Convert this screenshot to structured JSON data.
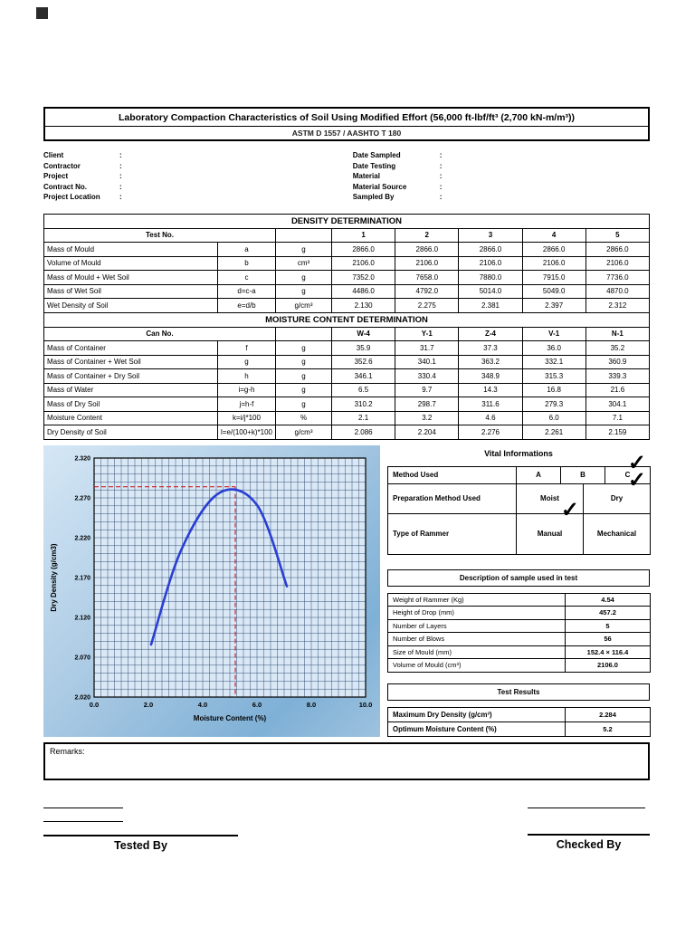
{
  "page": {
    "title": "Laboratory Compaction Characteristics of Soil Using Modified Effort (56,000 ft-lbf/ft³ (2,700 kN-m/m³))",
    "subtitle": "ASTM D 1557 / AASHTO T 180"
  },
  "info": {
    "colon": ":",
    "left": [
      "Client",
      "Contractor",
      "Project",
      "Contract No.",
      "Project Location"
    ],
    "right": [
      "Date Sampled",
      "Date Testing",
      "Material",
      "Material Source",
      "Sampled By"
    ]
  },
  "density": {
    "section_title": "DENSITY DETERMINATION",
    "header": {
      "label": "Test No.",
      "cols": [
        "1",
        "2",
        "3",
        "4",
        "5"
      ]
    },
    "rows": [
      {
        "label": "Mass of Mould",
        "formula": "a",
        "unit": "g",
        "values": [
          "2866.0",
          "2866.0",
          "2866.0",
          "2866.0",
          "2866.0"
        ]
      },
      {
        "label": "Volume of Mould",
        "formula": "b",
        "unit": "cm³",
        "values": [
          "2106.0",
          "2106.0",
          "2106.0",
          "2106.0",
          "2106.0"
        ]
      },
      {
        "label": "Mass of Mould + Wet Soil",
        "formula": "c",
        "unit": "g",
        "values": [
          "7352.0",
          "7658.0",
          "7880.0",
          "7915.0",
          "7736.0"
        ]
      },
      {
        "label": "Mass of Wet Soil",
        "formula": "d=c-a",
        "unit": "g",
        "values": [
          "4486.0",
          "4792.0",
          "5014.0",
          "5049.0",
          "4870.0"
        ]
      },
      {
        "label": "Wet Density of Soil",
        "formula": "e=d/b",
        "unit": "g/cm³",
        "values": [
          "2.130",
          "2.275",
          "2.381",
          "2.397",
          "2.312"
        ]
      }
    ]
  },
  "moisture": {
    "section_title": "MOISTURE CONTENT DETERMINATION",
    "header": {
      "label": "Can No.",
      "cols": [
        "W-4",
        "Y-1",
        "Z-4",
        "V-1",
        "N-1"
      ]
    },
    "rows": [
      {
        "label": "Mass of Container",
        "formula": "f",
        "unit": "g",
        "values": [
          "35.9",
          "31.7",
          "37.3",
          "36.0",
          "35.2"
        ]
      },
      {
        "label": "Mass of Container + Wet Soil",
        "formula": "g",
        "unit": "g",
        "values": [
          "352.6",
          "340.1",
          "363.2",
          "332.1",
          "360.9"
        ]
      },
      {
        "label": "Mass of Container + Dry Soil",
        "formula": "h",
        "unit": "g",
        "values": [
          "346.1",
          "330.4",
          "348.9",
          "315.3",
          "339.3"
        ]
      },
      {
        "label": "Mass of Water",
        "formula": "i=g-h",
        "unit": "g",
        "values": [
          "6.5",
          "9.7",
          "14.3",
          "16.8",
          "21.6"
        ]
      },
      {
        "label": "Mass of Dry Soil",
        "formula": "j=h-f",
        "unit": "g",
        "values": [
          "310.2",
          "298.7",
          "311.6",
          "279.3",
          "304.1"
        ]
      },
      {
        "label": "Moisture Content",
        "formula": "k=i/j*100",
        "unit": "%",
        "values": [
          "2.1",
          "3.2",
          "4.6",
          "6.0",
          "7.1"
        ]
      },
      {
        "label": "Dry Density of Soil",
        "formula": "l=e/(100+k)*100",
        "unit": "g/cm³",
        "values": [
          "2.086",
          "2.204",
          "2.276",
          "2.261",
          "2.159"
        ]
      }
    ]
  },
  "chart_data": {
    "type": "line",
    "title": "",
    "xlabel": "Moisture Content (%)",
    "ylabel": "Dry Density (g/cm3)",
    "x": [
      2.1,
      3.2,
      4.6,
      6.0,
      7.1
    ],
    "y": [
      2.086,
      2.204,
      2.276,
      2.261,
      2.159
    ],
    "xlim": [
      0,
      10
    ],
    "ylim": [
      2.02,
      2.32
    ],
    "xticks": [
      "0.0",
      "2.0",
      "4.0",
      "6.0",
      "8.0",
      "10.0"
    ],
    "yticks": [
      "2.020",
      "2.070",
      "2.120",
      "2.170",
      "2.220",
      "2.270",
      "2.320"
    ],
    "grid": true,
    "guides": {
      "optimum_moisture": 5.2,
      "max_dry_density": 2.284
    },
    "curve_color": "#2a3fd4",
    "guide_color": "#cc2222"
  },
  "vital": {
    "title": "Vital Informations",
    "method": {
      "label": "Method Used",
      "options": [
        "A",
        "B",
        "C"
      ],
      "checked": 2
    },
    "preparation": {
      "label": "Preparation Method Used",
      "options": [
        "Moist",
        "Dry"
      ],
      "checked": 1
    },
    "rammer": {
      "label": "Type of Rammer",
      "options": [
        "Manual",
        "Mechanical"
      ],
      "checked": 0
    }
  },
  "icons": {
    "check": "✓"
  },
  "description": {
    "title": "Description of sample used in test",
    "rows": [
      {
        "label": "Weight of Rammer (Kg)",
        "value": "4.54"
      },
      {
        "label": "Height of Drop (mm)",
        "value": "457.2"
      },
      {
        "label": "Number of Layers",
        "value": "5"
      },
      {
        "label": "Number of Blows",
        "value": "56"
      },
      {
        "label": "Size of Mould (mm)",
        "value": "152.4 × 116.4"
      },
      {
        "label": "Volume of Mould (cm³)",
        "value": "2106.0"
      }
    ]
  },
  "results": {
    "title": "Test Results",
    "rows": [
      {
        "label": "Maximum Dry Density (g/cm³)",
        "value": "2.284"
      },
      {
        "label": "Optimum Moisture Content (%)",
        "value": "5.2"
      }
    ]
  },
  "remarks": {
    "label": "Remarks:"
  },
  "footer": {
    "tested_by": "Tested By",
    "checked_by": "Checked By"
  }
}
